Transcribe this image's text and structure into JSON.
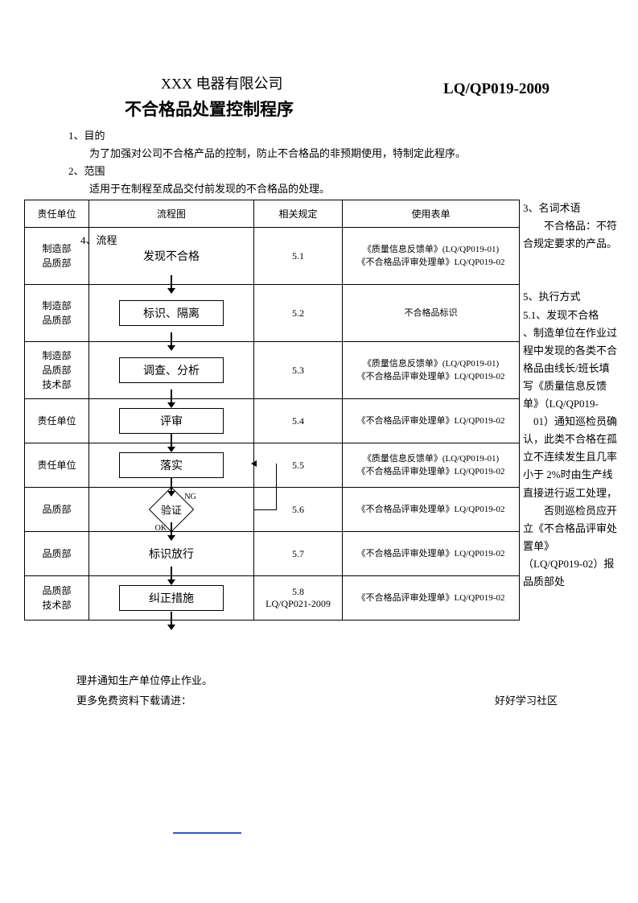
{
  "header": {
    "company": "XXX 电器有限公司",
    "title": "不合格品处置控制程序",
    "code": "LQ/QP019-2009"
  },
  "intro": {
    "s1_title": "1、目的",
    "s1_body": "为了加强对公司不合格产品的控制，防止不合格品的非预期使用，特制定此程序。",
    "s2_title": "2、范围",
    "s2_body": "适用于在制程至成品交付前发现的不合格品的处理。",
    "s4_title": "4、流程"
  },
  "table": {
    "headers": {
      "dept": "责任单位",
      "flow": "流程图",
      "rule": "相关规定",
      "form": "使用表单"
    },
    "rows": [
      {
        "dept": "制造部\n品质部",
        "flow": "发现不合格",
        "rule": "5.1",
        "form": "《质量信息反馈单》(LQ/QP019-01)\n《不合格品评审处理单》LQ/QP019-02",
        "box": false,
        "row_class": ""
      },
      {
        "dept": "制造部\n品质部",
        "flow": "标识、隔离",
        "rule": "5.2",
        "form": "不合格品标识",
        "box": true,
        "row_class": ""
      },
      {
        "dept": "制造部\n品质部\n技术部",
        "flow": "调查、分析",
        "rule": "5.3",
        "form": "《质量信息反馈单》(LQ/QP019-01)\n《不合格品评审处理单》LQ/QP019-02",
        "box": true,
        "row_class": ""
      },
      {
        "dept": "责任单位",
        "flow": "评审",
        "rule": "5.4",
        "form": "《不合格品评审处理单》LQ/QP019-02",
        "box": true,
        "row_class": "row-short"
      },
      {
        "dept": "责任单位",
        "flow": "落实",
        "rule": "5.5",
        "form": "《质量信息反馈单》(LQ/QP019-01)\n《不合格品评审处理单》LQ/QP019-02",
        "box": true,
        "row_class": "row-short"
      },
      {
        "dept": "品质部",
        "flow": "验证",
        "rule": "5.6",
        "form": "《不合格品评审处理单》LQ/QP019-02",
        "box": false,
        "diamond": true,
        "row_class": "row-short"
      },
      {
        "dept": "品质部",
        "flow": "标识放行",
        "rule": "5.7",
        "form": "《不合格品评审处理单》LQ/QP019-02",
        "box": false,
        "row_class": "row-short"
      },
      {
        "dept": "品质部\n技术部",
        "flow": "纠正措施",
        "rule": "5.8\nLQ/QP021-2009",
        "form": "《不合格品评审处理单》LQ/QP019-02",
        "box": true,
        "row_class": "row-short"
      }
    ],
    "ng": "NG",
    "ok": "OK"
  },
  "sidebar": {
    "text": "3、名词术语\n　　不合格品：不符合规定要求的产品。\n\n\n5、执行方式\n5.1、发现不合格\n、制造单位在作业过程中发现的各类不合格品由线长/班长填写《质量信息反馈单》（LQ/QP019-\n　01）通知巡检员确认，此类不合格在孤立不连续发生且几率小于 2%时由生产线直接进行返工处理，\n　　否则巡检员应开立《不合格品评审处置单》\n（LQ/QP019-02）报品质部处"
  },
  "footer": {
    "line1": "理并通知生产单位停止作业。",
    "left": "更多免费资料下载请进：",
    "right": "好好学习社区"
  },
  "colors": {
    "text": "#000000",
    "bg": "#ffffff",
    "accent": "#3355cc"
  }
}
